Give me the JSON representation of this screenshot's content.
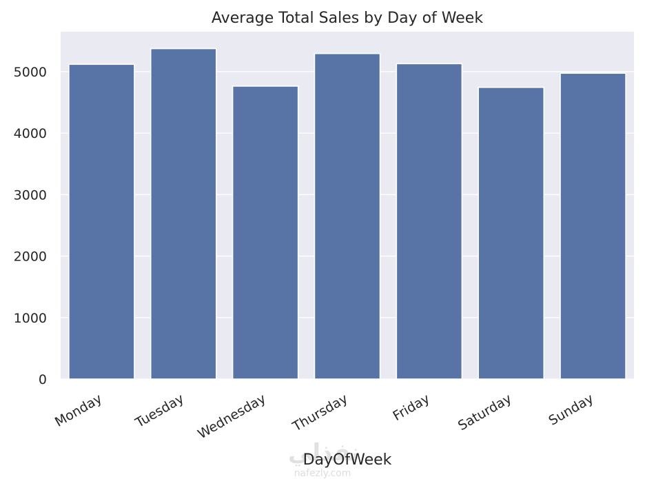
{
  "chart_data": {
    "type": "bar",
    "title": "Average Total Sales by Day of Week",
    "xlabel": "DayOfWeek",
    "ylabel": "",
    "categories": [
      "Monday",
      "Tuesday",
      "Wednesday",
      "Thursday",
      "Friday",
      "Saturday",
      "Sunday"
    ],
    "values": [
      5120,
      5375,
      4765,
      5295,
      5130,
      4745,
      4975
    ],
    "ylim": [
      0,
      5650
    ],
    "yticks": [
      0,
      1000,
      2000,
      3000,
      4000,
      5000
    ],
    "grid": true,
    "bar_color": "#5874a6",
    "background_color": "#eaeaf2"
  },
  "watermark": {
    "arabic": "نفذلي",
    "latin": "nafezly.com"
  }
}
